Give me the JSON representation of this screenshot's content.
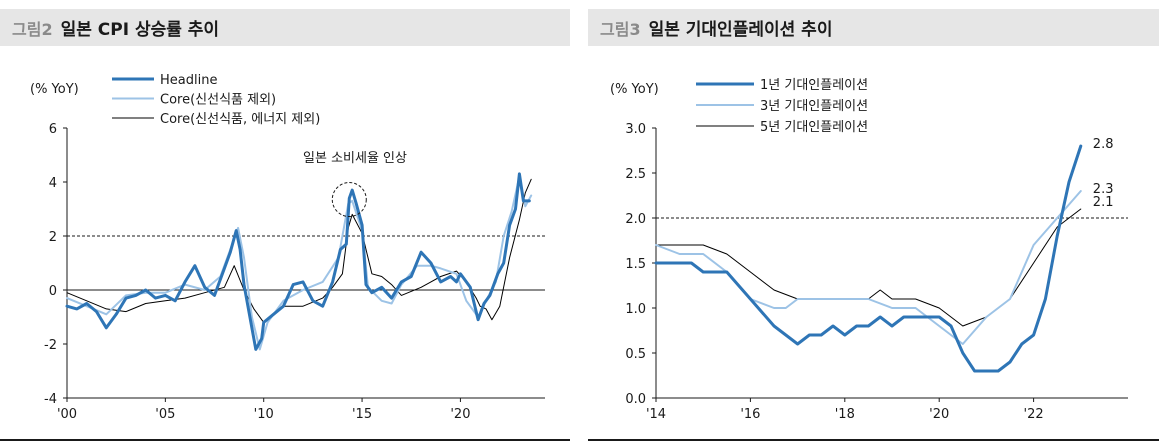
{
  "figures": [
    {
      "number": "그림2",
      "title": "일본 CPI 상승률 추이",
      "unit_label": "(% YoY)"
    },
    {
      "number": "그림3",
      "title": "일본 기대인플레이션 추이",
      "unit_label": "(% YoY)"
    }
  ],
  "chart_data": [
    {
      "type": "line",
      "title": "일본 CPI 상승률 추이",
      "ylabel": "(% YoY)",
      "ylim": [
        -4,
        6
      ],
      "yticks": [
        -4,
        -2,
        0,
        2,
        4,
        6
      ],
      "xlim": [
        2000,
        2024.3
      ],
      "xticks": [
        2000,
        2005,
        2010,
        2015,
        2020
      ],
      "xtick_labels": [
        "'00",
        "'05",
        "'10",
        "'15",
        "'20"
      ],
      "reference_lines": [
        {
          "y": 2,
          "style": "dashed"
        },
        {
          "y": 0,
          "style": "solid"
        }
      ],
      "annotation": "일본 소비세율 인상",
      "legend_position": "top-left",
      "series": [
        {
          "name": "Headline",
          "color": "#2e75b6",
          "x": [
            2000.0,
            2000.5,
            2001.0,
            2001.5,
            2002.0,
            2002.5,
            2003.0,
            2003.5,
            2004.0,
            2004.5,
            2005.0,
            2005.5,
            2006.0,
            2006.5,
            2007.0,
            2007.5,
            2008.0,
            2008.3,
            2008.6,
            2008.8,
            2009.0,
            2009.3,
            2009.6,
            2009.9,
            2010.0,
            2010.5,
            2011.0,
            2011.5,
            2012.0,
            2012.5,
            2013.0,
            2013.5,
            2013.9,
            2014.2,
            2014.35,
            2014.5,
            2014.7,
            2015.0,
            2015.2,
            2015.5,
            2016.0,
            2016.5,
            2017.0,
            2017.5,
            2018.0,
            2018.5,
            2019.0,
            2019.5,
            2019.8,
            2020.0,
            2020.5,
            2020.9,
            2021.2,
            2021.5,
            2021.9,
            2022.2,
            2022.5,
            2022.8,
            2023.0,
            2023.2,
            2023.5
          ],
          "values": [
            -0.6,
            -0.7,
            -0.5,
            -0.8,
            -1.4,
            -0.9,
            -0.3,
            -0.2,
            0.0,
            -0.3,
            -0.2,
            -0.4,
            0.3,
            0.9,
            0.1,
            -0.2,
            0.8,
            1.4,
            2.2,
            1.5,
            0.2,
            -1.0,
            -2.2,
            -1.8,
            -1.2,
            -0.9,
            -0.6,
            0.2,
            0.3,
            -0.4,
            -0.6,
            0.3,
            1.5,
            1.7,
            3.4,
            3.7,
            3.2,
            2.4,
            0.2,
            -0.1,
            0.1,
            -0.3,
            0.3,
            0.5,
            1.4,
            1.0,
            0.3,
            0.5,
            0.3,
            0.6,
            0.1,
            -1.1,
            -0.5,
            -0.2,
            0.6,
            1.0,
            2.4,
            3.0,
            4.3,
            3.3,
            3.3
          ]
        },
        {
          "name": "Core(신선식품 제외)",
          "color": "#9dc3e6",
          "x": [
            2000.0,
            2001.0,
            2002.0,
            2003.0,
            2004.0,
            2005.0,
            2006.0,
            2007.0,
            2007.8,
            2008.3,
            2008.7,
            2009.0,
            2009.4,
            2009.8,
            2010.2,
            2011.0,
            2012.0,
            2013.0,
            2013.8,
            2014.3,
            2014.5,
            2015.0,
            2015.3,
            2016.0,
            2016.5,
            2017.0,
            2017.8,
            2018.5,
            2019.0,
            2019.8,
            2020.3,
            2020.9,
            2021.3,
            2021.8,
            2022.2,
            2022.6,
            2023.0,
            2023.3,
            2023.6
          ],
          "values": [
            -0.3,
            -0.6,
            -0.9,
            -0.2,
            -0.1,
            -0.1,
            0.2,
            0.0,
            0.5,
            1.5,
            2.3,
            1.2,
            -1.0,
            -2.2,
            -1.2,
            -0.4,
            0.0,
            0.3,
            1.2,
            3.2,
            3.3,
            2.2,
            0.1,
            -0.4,
            -0.5,
            0.2,
            0.9,
            0.9,
            0.8,
            0.6,
            -0.4,
            -1.0,
            -0.4,
            0.3,
            2.0,
            2.9,
            4.2,
            3.1,
            3.5
          ]
        },
        {
          "name": "Core(신선식품, 에너지 제외)",
          "color": "#000000",
          "x": [
            2000.0,
            2001.0,
            2002.0,
            2003.0,
            2004.0,
            2005.0,
            2006.0,
            2007.0,
            2008.0,
            2008.5,
            2009.0,
            2009.5,
            2010.0,
            2010.5,
            2011.0,
            2012.0,
            2013.0,
            2013.5,
            2014.0,
            2014.3,
            2014.5,
            2015.0,
            2015.5,
            2016.0,
            2016.5,
            2017.0,
            2018.0,
            2018.5,
            2019.0,
            2019.8,
            2020.3,
            2020.8,
            2021.0,
            2021.3,
            2021.6,
            2022.0,
            2022.5,
            2023.0,
            2023.3,
            2023.6
          ],
          "values": [
            -0.1,
            -0.4,
            -0.7,
            -0.8,
            -0.5,
            -0.4,
            -0.3,
            -0.1,
            0.1,
            0.9,
            0.0,
            -0.7,
            -1.2,
            -0.9,
            -0.6,
            -0.6,
            -0.3,
            0.1,
            0.6,
            2.3,
            2.8,
            2.1,
            0.6,
            0.5,
            0.2,
            -0.2,
            0.1,
            0.3,
            0.5,
            0.7,
            0.3,
            -0.3,
            -0.6,
            -0.7,
            -1.1,
            -0.6,
            1.2,
            2.6,
            3.6,
            4.1
          ]
        }
      ]
    },
    {
      "type": "line",
      "title": "일본 기대인플레이션 추이",
      "ylabel": "(% YoY)",
      "ylim": [
        0.0,
        3.0
      ],
      "yticks": [
        "0.0",
        "0.5",
        "1.0",
        "1.5",
        "2.0",
        "2.5",
        "3.0"
      ],
      "xlim": [
        2014,
        2024
      ],
      "xticks": [
        2014,
        2016,
        2018,
        2020,
        2022
      ],
      "xtick_labels": [
        "'14",
        "'16",
        "'18",
        "'20",
        "'22"
      ],
      "reference_lines": [
        {
          "y": 2.0,
          "style": "dashed"
        }
      ],
      "legend_position": "top-left",
      "end_labels": [
        "2.8",
        "2.3",
        "2.1"
      ],
      "series": [
        {
          "name": "1년 기대인플레이션",
          "color": "#2e75b6",
          "x": [
            2014.0,
            2014.75,
            2015.0,
            2015.5,
            2016.0,
            2016.5,
            2016.75,
            2017.0,
            2017.25,
            2017.5,
            2017.75,
            2018.0,
            2018.25,
            2018.5,
            2018.75,
            2019.0,
            2019.25,
            2019.5,
            2019.75,
            2020.0,
            2020.25,
            2020.5,
            2020.75,
            2021.0,
            2021.25,
            2021.5,
            2021.75,
            2022.0,
            2022.25,
            2022.5,
            2022.75,
            2023.0
          ],
          "values": [
            1.5,
            1.5,
            1.4,
            1.4,
            1.1,
            0.8,
            0.7,
            0.6,
            0.7,
            0.7,
            0.8,
            0.7,
            0.8,
            0.8,
            0.9,
            0.8,
            0.9,
            0.9,
            0.9,
            0.9,
            0.8,
            0.5,
            0.3,
            0.3,
            0.3,
            0.4,
            0.6,
            0.7,
            1.1,
            1.8,
            2.4,
            2.8
          ]
        },
        {
          "name": "3년 기대인플레이션",
          "color": "#9dc3e6",
          "x": [
            2014.0,
            2014.5,
            2015.0,
            2015.5,
            2016.0,
            2016.5,
            2016.75,
            2017.0,
            2017.5,
            2018.0,
            2018.5,
            2019.0,
            2019.5,
            2020.0,
            2020.5,
            2021.0,
            2021.5,
            2022.0,
            2022.5,
            2023.0
          ],
          "values": [
            1.7,
            1.6,
            1.6,
            1.4,
            1.1,
            1.0,
            1.0,
            1.1,
            1.1,
            1.1,
            1.1,
            1.0,
            1.0,
            0.8,
            0.6,
            0.9,
            1.1,
            1.7,
            2.0,
            2.3
          ]
        },
        {
          "name": "5년 기대인플레이션",
          "color": "#000000",
          "x": [
            2014.0,
            2014.5,
            2015.0,
            2015.5,
            2016.0,
            2016.5,
            2017.0,
            2017.5,
            2018.0,
            2018.5,
            2018.75,
            2019.0,
            2019.5,
            2020.0,
            2020.5,
            2021.0,
            2021.5,
            2022.0,
            2022.5,
            2023.0
          ],
          "values": [
            1.7,
            1.7,
            1.7,
            1.6,
            1.4,
            1.2,
            1.1,
            1.1,
            1.1,
            1.1,
            1.2,
            1.1,
            1.1,
            1.0,
            0.8,
            0.9,
            1.1,
            1.5,
            1.9,
            2.1
          ]
        }
      ]
    }
  ]
}
